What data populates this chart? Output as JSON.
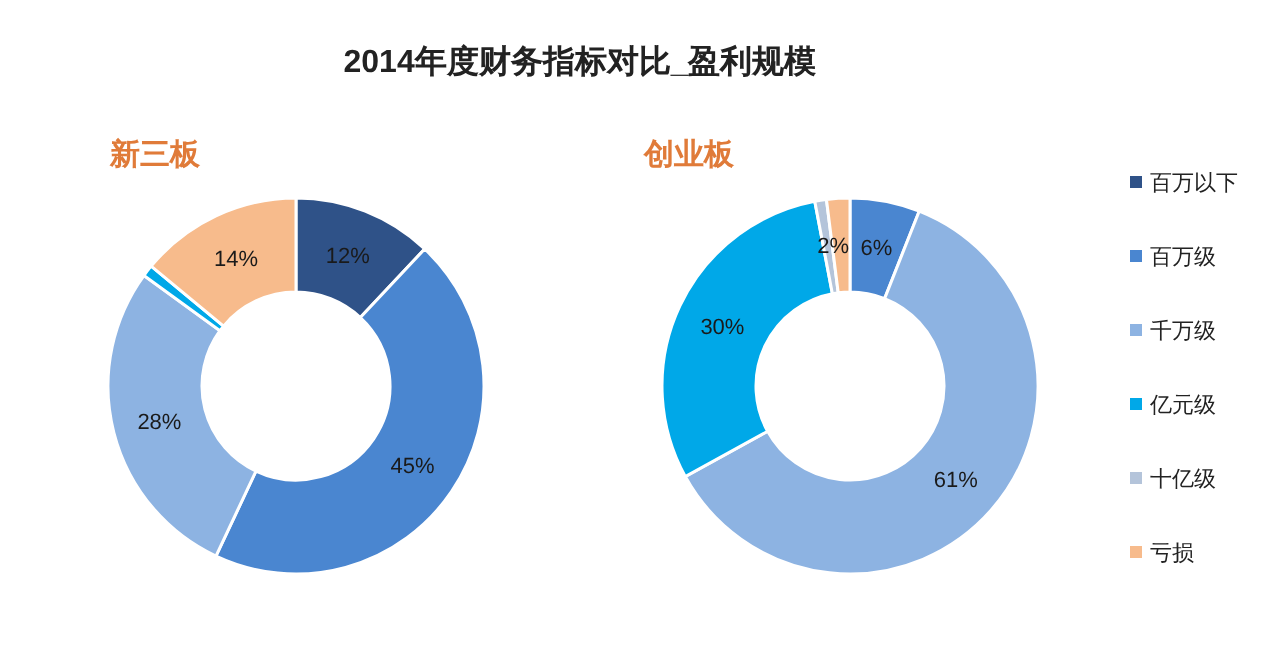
{
  "chart_data": {
    "type": "donut",
    "title": "2014年度财务指标对比_盈利规模",
    "categories": [
      "百万以下",
      "百万级",
      "千万级",
      "亿元级",
      "十亿级",
      "亏损"
    ],
    "legend": "right",
    "series": [
      {
        "name": "新三板",
        "values": [
          12,
          45,
          28,
          1,
          0,
          14
        ],
        "value_labels": [
          "12%",
          "45%",
          "28%",
          null,
          null,
          "14%"
        ],
        "colors": [
          "#2f5288",
          "#4a86d0",
          "#8db3e2",
          "#00a8e8",
          "#b4c4da",
          "#f7bb8c"
        ]
      },
      {
        "name": "创业板",
        "values": [
          0,
          6,
          61,
          30,
          1,
          2
        ],
        "value_labels": [
          null,
          "6%",
          "61%",
          "30%",
          null,
          "2%"
        ],
        "colors": [
          "#2f5288",
          "#4a86d0",
          "#8db3e2",
          "#00a8e8",
          "#b4c4da",
          "#f7bb8c"
        ]
      }
    ]
  }
}
